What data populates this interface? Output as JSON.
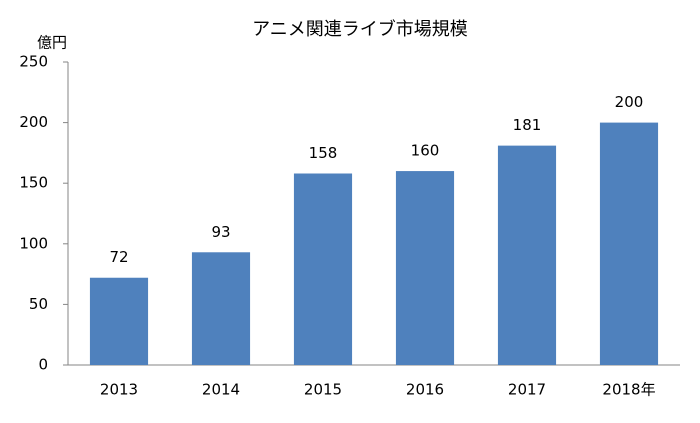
{
  "chart_data": {
    "type": "bar",
    "title": "アニメ関連ライブ市場規模",
    "y_label": "億円",
    "categories": [
      "2013",
      "2014",
      "2015",
      "2016",
      "2017",
      "2018年"
    ],
    "values": [
      72,
      93,
      158,
      160,
      181,
      200
    ],
    "color": "#4f81bd",
    "ylim": [
      0,
      250
    ],
    "yticks": [
      0,
      50,
      100,
      150,
      200,
      250
    ],
    "grid": false,
    "data_labels": true
  }
}
